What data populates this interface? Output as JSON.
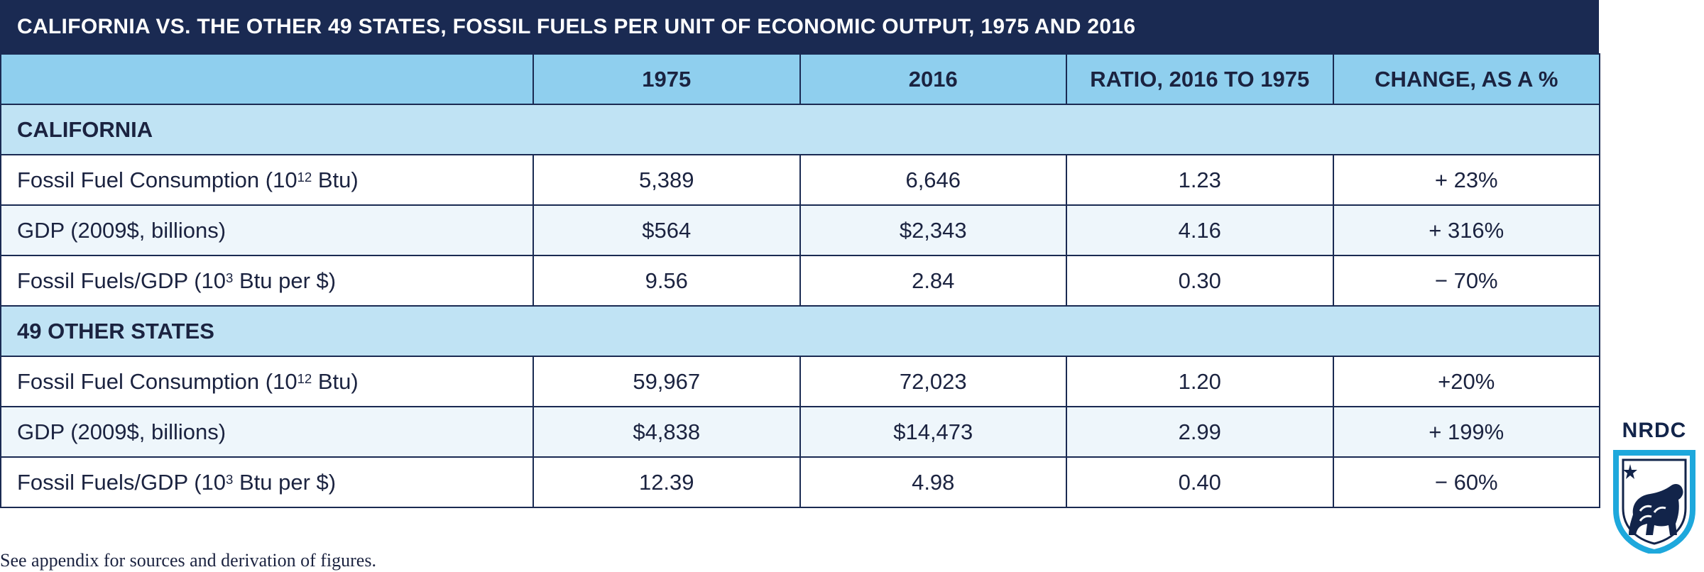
{
  "title": "CALIFORNIA VS. THE OTHER 49 STATES, FOSSIL FUELS PER UNIT OF ECONOMIC OUTPUT, 1975 AND 2016",
  "columns": [
    "",
    "1975",
    "2016",
    "RATIO, 2016 TO 1975",
    "CHANGE, AS A %"
  ],
  "sections": [
    {
      "name": "CALIFORNIA",
      "rows": [
        {
          "label": "Fossil Fuel Consumption (10",
          "sup": "12",
          "label_after": " Btu)",
          "values": [
            "5,389",
            "6,646",
            "1.23",
            "+ 23%"
          ]
        },
        {
          "label": "GDP (2009$, billions)",
          "sup": "",
          "label_after": "",
          "values": [
            "$564",
            "$2,343",
            "4.16",
            "+ 316%"
          ]
        },
        {
          "label": "Fossil Fuels/GDP (10",
          "sup": "3",
          "label_after": " Btu per $)",
          "values": [
            "9.56",
            "2.84",
            "0.30",
            "− 70%"
          ]
        }
      ]
    },
    {
      "name": "49 OTHER STATES",
      "rows": [
        {
          "label": "Fossil Fuel Consumption (10",
          "sup": "12",
          "label_after": " Btu)",
          "values": [
            "59,967",
            "72,023",
            "1.20",
            "+20%"
          ]
        },
        {
          "label": "GDP (2009$, billions)",
          "sup": "",
          "label_after": "",
          "values": [
            "$4,838",
            "$14,473",
            "2.99",
            "+ 199%"
          ]
        },
        {
          "label": "Fossil Fuels/GDP (10",
          "sup": "3",
          "label_after": " Btu per $)",
          "values": [
            "12.39",
            "4.98",
            "0.40",
            "− 60%"
          ]
        }
      ]
    }
  ],
  "footnote": "See appendix for sources and derivation of figures.",
  "logo": {
    "text": "NRDC",
    "icon": "bear-shield-icon"
  },
  "colors": {
    "title_bg": "#1a2a52",
    "header_bg": "#8fcfee",
    "section_bg": "#c0e3f4",
    "row_alt_bg": "#eef6fb",
    "logo_blue": "#1ea8dc"
  }
}
